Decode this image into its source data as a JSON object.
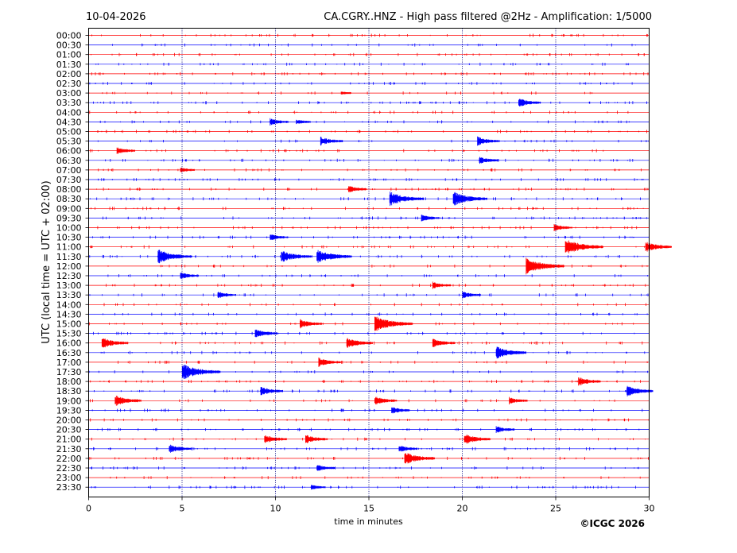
{
  "header": {
    "date": "10-04-2026",
    "title": "CA.CGRY..HNZ - High pass filtered @2Hz - Amplification: 1/5000"
  },
  "footer": {
    "copyright": "©ICGC 2026"
  },
  "colors": {
    "even_row": "#ff0000",
    "odd_row": "#0000ff",
    "grid": "#000080",
    "axes": "#000000"
  },
  "chart_data": {
    "type": "line",
    "title": "CA.CGRY..HNZ - High pass filtered @2Hz - Amplification: 1/5000",
    "xlabel": "time in minutes",
    "ylabel": "UTC (local time = UTC + 02:00)",
    "xlim": [
      0,
      30
    ],
    "x_ticks": [
      0,
      5,
      10,
      15,
      20,
      25,
      30
    ],
    "x_gridlines": [
      5,
      10,
      15,
      20,
      25
    ],
    "row_labels": [
      "00:00",
      "00:30",
      "01:00",
      "01:30",
      "02:00",
      "02:30",
      "03:00",
      "03:30",
      "04:00",
      "04:30",
      "05:00",
      "05:30",
      "06:00",
      "06:30",
      "07:00",
      "07:30",
      "08:00",
      "08:30",
      "09:00",
      "09:30",
      "10:00",
      "10:30",
      "11:00",
      "11:30",
      "12:00",
      "12:30",
      "13:00",
      "13:30",
      "14:00",
      "14:30",
      "15:00",
      "15:30",
      "16:00",
      "16:30",
      "17:00",
      "17:30",
      "18:00",
      "18:30",
      "19:00",
      "19:30",
      "20:00",
      "20:30",
      "21:00",
      "21:30",
      "22:00",
      "22:30",
      "23:00",
      "23:30"
    ],
    "row_colors": "alternating red / blue",
    "events": [
      {
        "row": "03:00",
        "t": 13.6,
        "amp": 1
      },
      {
        "row": "03:30",
        "t": 23.1,
        "amp": 4
      },
      {
        "row": "04:30",
        "t": 9.8,
        "amp": 3
      },
      {
        "row": "04:30",
        "t": 11.2,
        "amp": 2
      },
      {
        "row": "05:30",
        "t": 12.5,
        "amp": 4
      },
      {
        "row": "05:30",
        "t": 20.9,
        "amp": 4
      },
      {
        "row": "06:00",
        "t": 1.6,
        "amp": 3
      },
      {
        "row": "06:30",
        "t": 21.0,
        "amp": 3
      },
      {
        "row": "07:00",
        "t": 5.0,
        "amp": 2
      },
      {
        "row": "08:00",
        "t": 14.0,
        "amp": 3
      },
      {
        "row": "08:30",
        "t": 16.2,
        "amp": 7
      },
      {
        "row": "08:30",
        "t": 19.6,
        "amp": 7
      },
      {
        "row": "09:30",
        "t": 17.9,
        "amp": 3
      },
      {
        "row": "10:00",
        "t": 25.0,
        "amp": 3
      },
      {
        "row": "10:30",
        "t": 9.8,
        "amp": 3
      },
      {
        "row": "11:00",
        "t": 25.6,
        "amp": 8
      },
      {
        "row": "11:00",
        "t": 29.9,
        "amp": 5
      },
      {
        "row": "11:30",
        "t": 3.8,
        "amp": 7
      },
      {
        "row": "11:30",
        "t": 10.4,
        "amp": 6
      },
      {
        "row": "11:30",
        "t": 12.3,
        "amp": 7
      },
      {
        "row": "12:00",
        "t": 23.5,
        "amp": 8
      },
      {
        "row": "12:30",
        "t": 5.0,
        "amp": 3
      },
      {
        "row": "13:00",
        "t": 18.5,
        "amp": 3
      },
      {
        "row": "13:30",
        "t": 7.0,
        "amp": 3
      },
      {
        "row": "13:30",
        "t": 20.1,
        "amp": 3
      },
      {
        "row": "15:00",
        "t": 11.4,
        "amp": 4
      },
      {
        "row": "15:00",
        "t": 15.4,
        "amp": 8
      },
      {
        "row": "15:30",
        "t": 9.0,
        "amp": 4
      },
      {
        "row": "16:00",
        "t": 0.8,
        "amp": 5
      },
      {
        "row": "16:00",
        "t": 13.9,
        "amp": 5
      },
      {
        "row": "16:00",
        "t": 18.5,
        "amp": 4
      },
      {
        "row": "16:30",
        "t": 21.9,
        "amp": 6
      },
      {
        "row": "17:00",
        "t": 12.4,
        "amp": 4
      },
      {
        "row": "17:30",
        "t": 5.1,
        "amp": 8
      },
      {
        "row": "18:00",
        "t": 26.3,
        "amp": 4
      },
      {
        "row": "18:30",
        "t": 9.3,
        "amp": 4
      },
      {
        "row": "18:30",
        "t": 28.9,
        "amp": 5
      },
      {
        "row": "19:00",
        "t": 1.5,
        "amp": 5
      },
      {
        "row": "19:00",
        "t": 15.4,
        "amp": 4
      },
      {
        "row": "19:00",
        "t": 22.6,
        "amp": 3
      },
      {
        "row": "19:30",
        "t": 16.3,
        "amp": 3
      },
      {
        "row": "20:30",
        "t": 21.9,
        "amp": 3
      },
      {
        "row": "21:00",
        "t": 9.5,
        "amp": 4
      },
      {
        "row": "21:00",
        "t": 11.7,
        "amp": 4
      },
      {
        "row": "21:00",
        "t": 20.2,
        "amp": 5
      },
      {
        "row": "21:30",
        "t": 4.4,
        "amp": 4
      },
      {
        "row": "21:30",
        "t": 16.7,
        "amp": 3
      },
      {
        "row": "22:00",
        "t": 17.0,
        "amp": 6
      },
      {
        "row": "22:30",
        "t": 12.3,
        "amp": 3
      },
      {
        "row": "23:30",
        "t": 12.0,
        "amp": 2
      }
    ]
  }
}
